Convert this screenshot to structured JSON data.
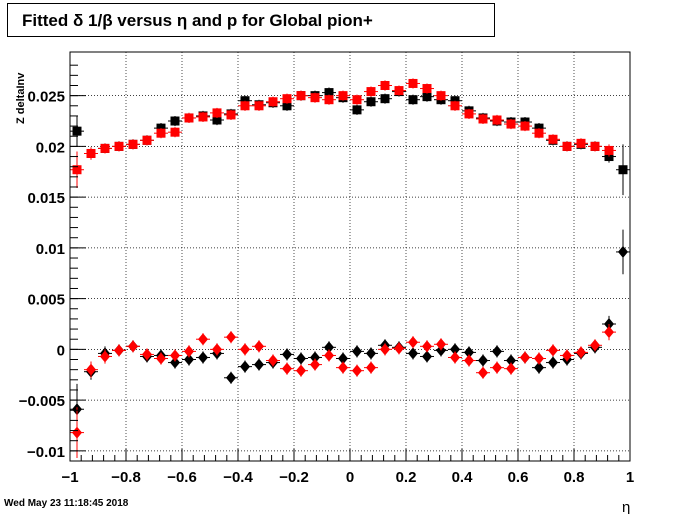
{
  "title": "Fitted δ 1/β versus η and p for Global pion+",
  "timestamp": "Wed May 23 11:18:45 2018",
  "chart_data": {
    "type": "scatter",
    "title": "Fitted δ 1/β versus η and p for Global pion+",
    "xlabel": "η",
    "ylabel": "Z deltaInv",
    "xlim": [
      -1,
      1
    ],
    "ylim": [
      -0.011,
      0.0293
    ],
    "grid": true,
    "x_ticks": [
      -1,
      -0.8,
      -0.6,
      -0.4,
      -0.2,
      0,
      0.2,
      0.4,
      0.6,
      0.8,
      1
    ],
    "x_tick_labels": [
      "−1",
      "−0.8",
      "−0.6",
      "−0.4",
      "−0.2",
      "0",
      "0.2",
      "0.4",
      "0.6",
      "0.8",
      "1"
    ],
    "y_ticks": [
      -0.01,
      -0.005,
      0,
      0.005,
      0.01,
      0.015,
      0.02,
      0.025
    ],
    "y_tick_labels": [
      "−0.01",
      "−0.005",
      "0",
      "0.005",
      "0.01",
      "0.015",
      "0.02",
      "0.025"
    ],
    "x": [
      -0.975,
      -0.925,
      -0.875,
      -0.825,
      -0.775,
      -0.725,
      -0.675,
      -0.625,
      -0.575,
      -0.525,
      -0.475,
      -0.425,
      -0.375,
      -0.325,
      -0.275,
      -0.225,
      -0.175,
      -0.125,
      -0.075,
      -0.025,
      0.025,
      0.075,
      0.125,
      0.175,
      0.225,
      0.275,
      0.325,
      0.375,
      0.425,
      0.475,
      0.525,
      0.575,
      0.625,
      0.675,
      0.725,
      0.775,
      0.825,
      0.875,
      0.925,
      0.975
    ],
    "series": [
      {
        "color": "#000000",
        "marker": "square",
        "values": [
          0.0215,
          0.0193,
          0.0198,
          0.02,
          0.0202,
          0.0206,
          0.0218,
          0.0225,
          0.0228,
          0.023,
          0.0226,
          0.0232,
          0.0245,
          0.0241,
          0.0243,
          0.024,
          0.025,
          0.025,
          0.0253,
          0.0248,
          0.0236,
          0.0244,
          0.0247,
          0.0254,
          0.0246,
          0.0249,
          0.0246,
          0.0245,
          0.0235,
          0.0228,
          0.0225,
          0.0224,
          0.0224,
          0.0218,
          0.0206,
          0.02,
          0.0202,
          0.02,
          0.019,
          0.0177
        ],
        "errors": [
          0.0015,
          0.0006,
          0.0005,
          0.0005,
          0.0005,
          0.0005,
          0.0005,
          0.0005,
          0.0005,
          0.0005,
          0.0005,
          0.0005,
          0.0005,
          0.0005,
          0.0005,
          0.0005,
          0.0005,
          0.0005,
          0.0005,
          0.0005,
          0.0005,
          0.0005,
          0.0005,
          0.0005,
          0.0005,
          0.0005,
          0.0005,
          0.0005,
          0.0005,
          0.0005,
          0.0005,
          0.0005,
          0.0005,
          0.0005,
          0.0005,
          0.0005,
          0.0005,
          0.0005,
          0.0006,
          0.0025
        ]
      },
      {
        "color": "#ff0000",
        "marker": "square",
        "values": [
          0.0177,
          0.0193,
          0.0198,
          0.02,
          0.0202,
          0.0206,
          0.0213,
          0.0214,
          0.0228,
          0.0229,
          0.0233,
          0.0231,
          0.024,
          0.024,
          0.0244,
          0.0247,
          0.025,
          0.0248,
          0.0246,
          0.025,
          0.0246,
          0.0254,
          0.026,
          0.0255,
          0.0262,
          0.0257,
          0.025,
          0.024,
          0.0232,
          0.0227,
          0.0226,
          0.0222,
          0.022,
          0.0213,
          0.0207,
          0.02,
          0.0203,
          0.02,
          0.0196,
          null
        ],
        "errors": [
          0.0018,
          0.0006,
          0.0005,
          0.0005,
          0.0005,
          0.0005,
          0.0005,
          0.0005,
          0.0005,
          0.0005,
          0.0005,
          0.0005,
          0.0005,
          0.0005,
          0.0005,
          0.0005,
          0.0005,
          0.0005,
          0.0005,
          0.0005,
          0.0005,
          0.0005,
          0.0005,
          0.0005,
          0.0005,
          0.0005,
          0.0005,
          0.0005,
          0.0005,
          0.0005,
          0.0005,
          0.0005,
          0.0005,
          0.0005,
          0.0005,
          0.0005,
          0.0005,
          0.0005,
          0.0006,
          null
        ]
      },
      {
        "color": "#000000",
        "marker": "diamond",
        "values": [
          -0.0059,
          -0.0022,
          -0.0004,
          -0.0001,
          0.0003,
          -0.0007,
          -0.0006,
          -0.0013,
          -0.001,
          -0.0008,
          -0.0004,
          -0.0028,
          -0.0017,
          -0.0015,
          -0.0013,
          -0.0005,
          -0.0009,
          -0.0008,
          0.0002,
          -0.0009,
          -0.0002,
          -0.0004,
          0.0004,
          0.0002,
          -0.0004,
          -0.0007,
          -0.0001,
          0.0,
          -0.0003,
          -0.0011,
          -0.0002,
          -0.0011,
          -0.0008,
          -0.0018,
          -0.0013,
          -0.001,
          -0.0004,
          0.0002,
          0.0025,
          0.0096
        ],
        "errors": [
          0.0025,
          0.0008,
          0.0007,
          0.0006,
          0.0006,
          0.0006,
          0.0006,
          0.0006,
          0.0006,
          0.0006,
          0.0006,
          0.0006,
          0.0006,
          0.0006,
          0.0006,
          0.0006,
          0.0006,
          0.0006,
          0.0006,
          0.0006,
          0.0006,
          0.0006,
          0.0006,
          0.0006,
          0.0006,
          0.0006,
          0.0006,
          0.0006,
          0.0006,
          0.0006,
          0.0006,
          0.0006,
          0.0006,
          0.0006,
          0.0006,
          0.0006,
          0.0006,
          0.0006,
          0.0008,
          0.0022
        ]
      },
      {
        "color": "#ff0000",
        "marker": "diamond",
        "values": [
          -0.0082,
          -0.002,
          -0.0007,
          -0.0001,
          0.0003,
          -0.0005,
          -0.0009,
          -0.0006,
          -0.0002,
          0.001,
          0.0,
          0.0012,
          0.0,
          0.0003,
          -0.0011,
          -0.0019,
          -0.0021,
          -0.0015,
          -0.0006,
          -0.0018,
          -0.0021,
          -0.0018,
          0.0,
          0.0001,
          0.0007,
          0.0003,
          0.0005,
          -0.0008,
          -0.0011,
          -0.0023,
          -0.0018,
          -0.0019,
          -0.0008,
          -0.0009,
          -0.0001,
          -0.0006,
          -0.0003,
          0.0004,
          0.0017,
          null
        ],
        "errors": [
          0.0025,
          0.0008,
          0.0007,
          0.0006,
          0.0006,
          0.0006,
          0.0006,
          0.0006,
          0.0006,
          0.0006,
          0.0006,
          0.0006,
          0.0006,
          0.0006,
          0.0006,
          0.0006,
          0.0006,
          0.0006,
          0.0006,
          0.0006,
          0.0006,
          0.0006,
          0.0006,
          0.0006,
          0.0006,
          0.0006,
          0.0006,
          0.0006,
          0.0006,
          0.0006,
          0.0006,
          0.0006,
          0.0006,
          0.0006,
          0.0006,
          0.0006,
          0.0006,
          0.0006,
          0.0008,
          null
        ]
      }
    ]
  }
}
